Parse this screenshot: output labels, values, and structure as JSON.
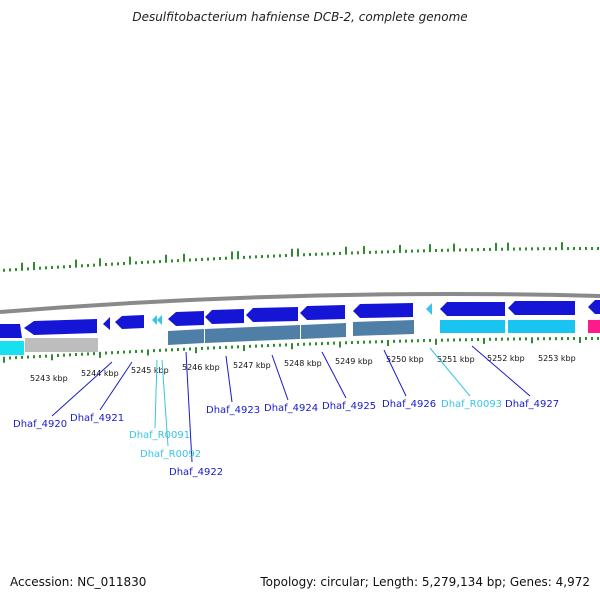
{
  "title": "Desulfitobacterium hafniense DCB-2, complete genome",
  "footer": {
    "accession": "Accession: NC_011830",
    "topology": "Topology: circular; Length: 5,279,134 bp; Genes: 4,972"
  },
  "colors": {
    "background": "#ffffff",
    "backbone": "#8a8a8a",
    "gc_skew": "#2e8b2e",
    "gene_arrow": "#1515d6",
    "cds_bar": "#4f7fa6",
    "rna": "#38c4e8",
    "pseudo": "#bdbdbd",
    "other": "#ff1a8c",
    "label_gene": "#1a1acc",
    "label_rna": "#38c4e8"
  },
  "ticks": [
    {
      "label": "5243 kbp"
    },
    {
      "label": "5244 kbp"
    },
    {
      "label": "5245 kbp"
    },
    {
      "label": "5246 kbp"
    },
    {
      "label": "5247 kbp"
    },
    {
      "label": "5248 kbp"
    },
    {
      "label": "5249 kbp"
    },
    {
      "label": "5250 kbp"
    },
    {
      "label": "5251 kbp"
    },
    {
      "label": "5252 kbp"
    },
    {
      "label": "5253 kbp"
    }
  ],
  "genes": [
    {
      "label": "Dhaf_4920",
      "kind": "gene"
    },
    {
      "label": "Dhaf_4921",
      "kind": "gene"
    },
    {
      "label": "Dhaf_R0091",
      "kind": "rna"
    },
    {
      "label": "Dhaf_R0092",
      "kind": "rna"
    },
    {
      "label": "Dhaf_4922",
      "kind": "gene"
    },
    {
      "label": "Dhaf_4923",
      "kind": "gene"
    },
    {
      "label": "Dhaf_4924",
      "kind": "gene"
    },
    {
      "label": "Dhaf_4925",
      "kind": "gene"
    },
    {
      "label": "Dhaf_4926",
      "kind": "gene"
    },
    {
      "label": "Dhaf_R0093",
      "kind": "rna"
    },
    {
      "label": "Dhaf_4927",
      "kind": "gene"
    }
  ]
}
